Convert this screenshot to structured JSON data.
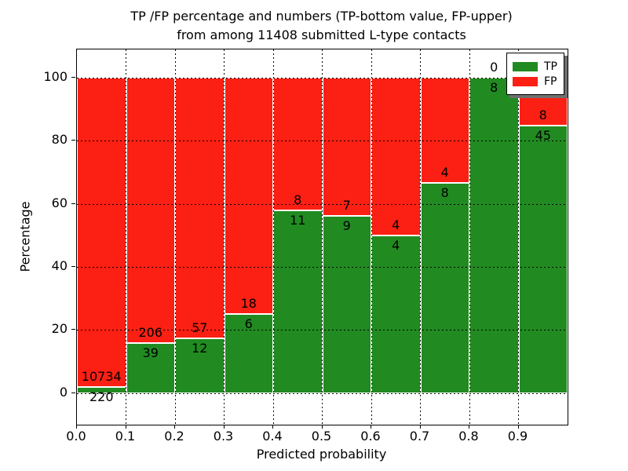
{
  "chart_data": {
    "type": "bar",
    "stacked": true,
    "title_line1": "TP /FP percentage and numbers (TP-bottom value, FP-upper)",
    "title_line2": "from among 11408 submitted L-type contacts",
    "xlabel": "Predicted probability",
    "ylabel": "Percentage",
    "x_ticks": [
      "0.0",
      "0.1",
      "0.2",
      "0.3",
      "0.4",
      "0.5",
      "0.6",
      "0.7",
      "0.8",
      "0.9"
    ],
    "y_ticks": [
      0,
      20,
      40,
      60,
      80,
      100
    ],
    "xlim": [
      0.0,
      1.0
    ],
    "ylim": [
      -10,
      109
    ],
    "bin_width": 0.1,
    "total_submitted": 11408,
    "bar_mode": "percentage_stacked_to_100",
    "grid": {
      "style": "dotted",
      "color": "#000000",
      "above_bars": true
    },
    "bar_edge_color": "#ffffff",
    "background_color": "#ffffff",
    "legend": {
      "position": "upper right",
      "shadow": true
    },
    "series": [
      {
        "name": "TP",
        "color": "#218b21",
        "values": [
          220,
          39,
          12,
          6,
          11,
          9,
          4,
          8,
          8,
          45
        ]
      },
      {
        "name": "FP",
        "color": "#fb2013",
        "values": [
          10734,
          206,
          57,
          18,
          8,
          7,
          4,
          4,
          0,
          8
        ]
      }
    ],
    "tp_percent_by_bin": [
      2.0,
      15.9,
      17.4,
      25.0,
      57.9,
      56.3,
      50.0,
      66.7,
      100.0,
      84.9
    ]
  }
}
